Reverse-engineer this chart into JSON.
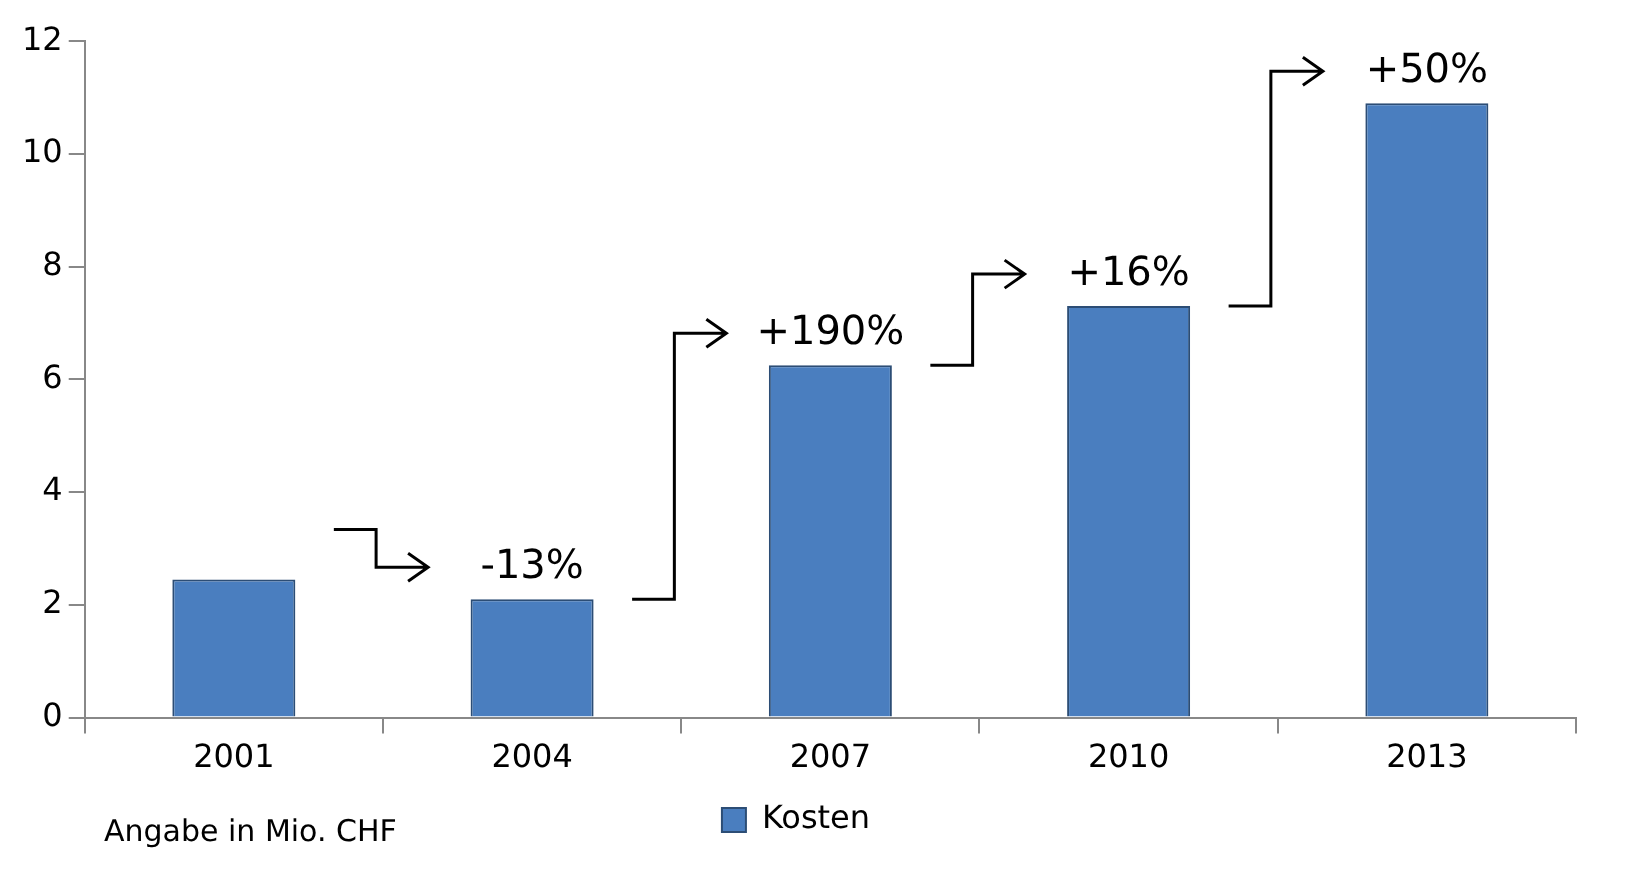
{
  "chart_data": {
    "type": "bar",
    "categories": [
      "2001",
      "2004",
      "2007",
      "2010",
      "2013"
    ],
    "series": [
      {
        "name": "Kosten",
        "color": "#4a7ebf",
        "values": [
          2.45,
          2.1,
          6.25,
          7.3,
          10.9
        ]
      }
    ],
    "ylim": [
      0,
      12
    ],
    "yticks": [
      0,
      2,
      4,
      6,
      8,
      10,
      12
    ],
    "grid": false,
    "legend": "bottom",
    "annotations": [
      {
        "text": "-13%",
        "x": "2004",
        "y": 2.1
      },
      {
        "text": "+190%",
        "x": "2007",
        "y": 6.25
      },
      {
        "text": "+16%",
        "x": "2010",
        "y": 7.3
      },
      {
        "text": "+50%",
        "x": "2013",
        "y": 10.9
      },
      "Angabe in Mio. CHF"
    ]
  }
}
